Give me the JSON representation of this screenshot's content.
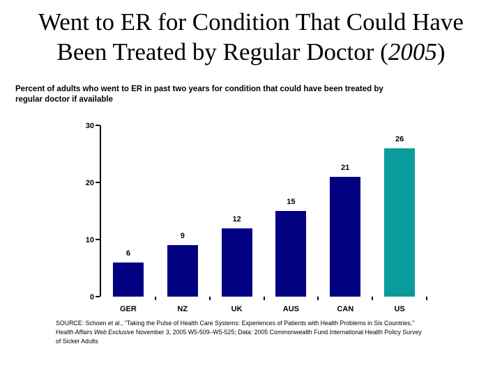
{
  "slide": {
    "title": {
      "line1": "Went to ER for Condition That Could Have",
      "line2_prefix": "Been Treated by Regular Doctor (",
      "line2_year": "2005",
      "line2_suffix": ")"
    },
    "subtitle": {
      "line1": "Percent of adults who went to ER in past two years for condition that could have been treated by",
      "line2": "regular doctor if available"
    },
    "source": {
      "line1": "SOURCE: Schoen et al., \"Taking the Pulse of Health Care Systems: Experiences of Patients with Health Problems in Six Countries,\"",
      "line2_italic": "Health Affairs Web Exclusive",
      "line2_rest": " November 3, 2005 W5-509–W5-525; Data: 2005 Commonwealth Fund International Health Policy Survey",
      "line3": "of Sicker Adults"
    }
  },
  "chart_data": {
    "type": "bar",
    "title": "Went to ER for Condition That Could Have Been Treated by Regular Doctor (2005)",
    "subtitle": "Percent of adults who went to ER in past two years for condition that could have been treated by regular doctor if available",
    "categories": [
      "GER",
      "NZ",
      "UK",
      "AUS",
      "CAN",
      "US"
    ],
    "values": [
      6,
      9,
      12,
      15,
      21,
      26
    ],
    "bar_colors": [
      "#000080",
      "#000080",
      "#000080",
      "#000080",
      "#000080",
      "#0A9B9B"
    ],
    "data_labels": true,
    "xlabel": "",
    "ylabel": "",
    "ylim": [
      0,
      30
    ],
    "yticks": [
      0,
      10,
      20,
      30
    ],
    "grid": false,
    "legend": "none"
  },
  "colors": {
    "navy": "#000080",
    "teal": "#0A9B9B",
    "text": "#000000",
    "background": "#FFFFFF"
  }
}
